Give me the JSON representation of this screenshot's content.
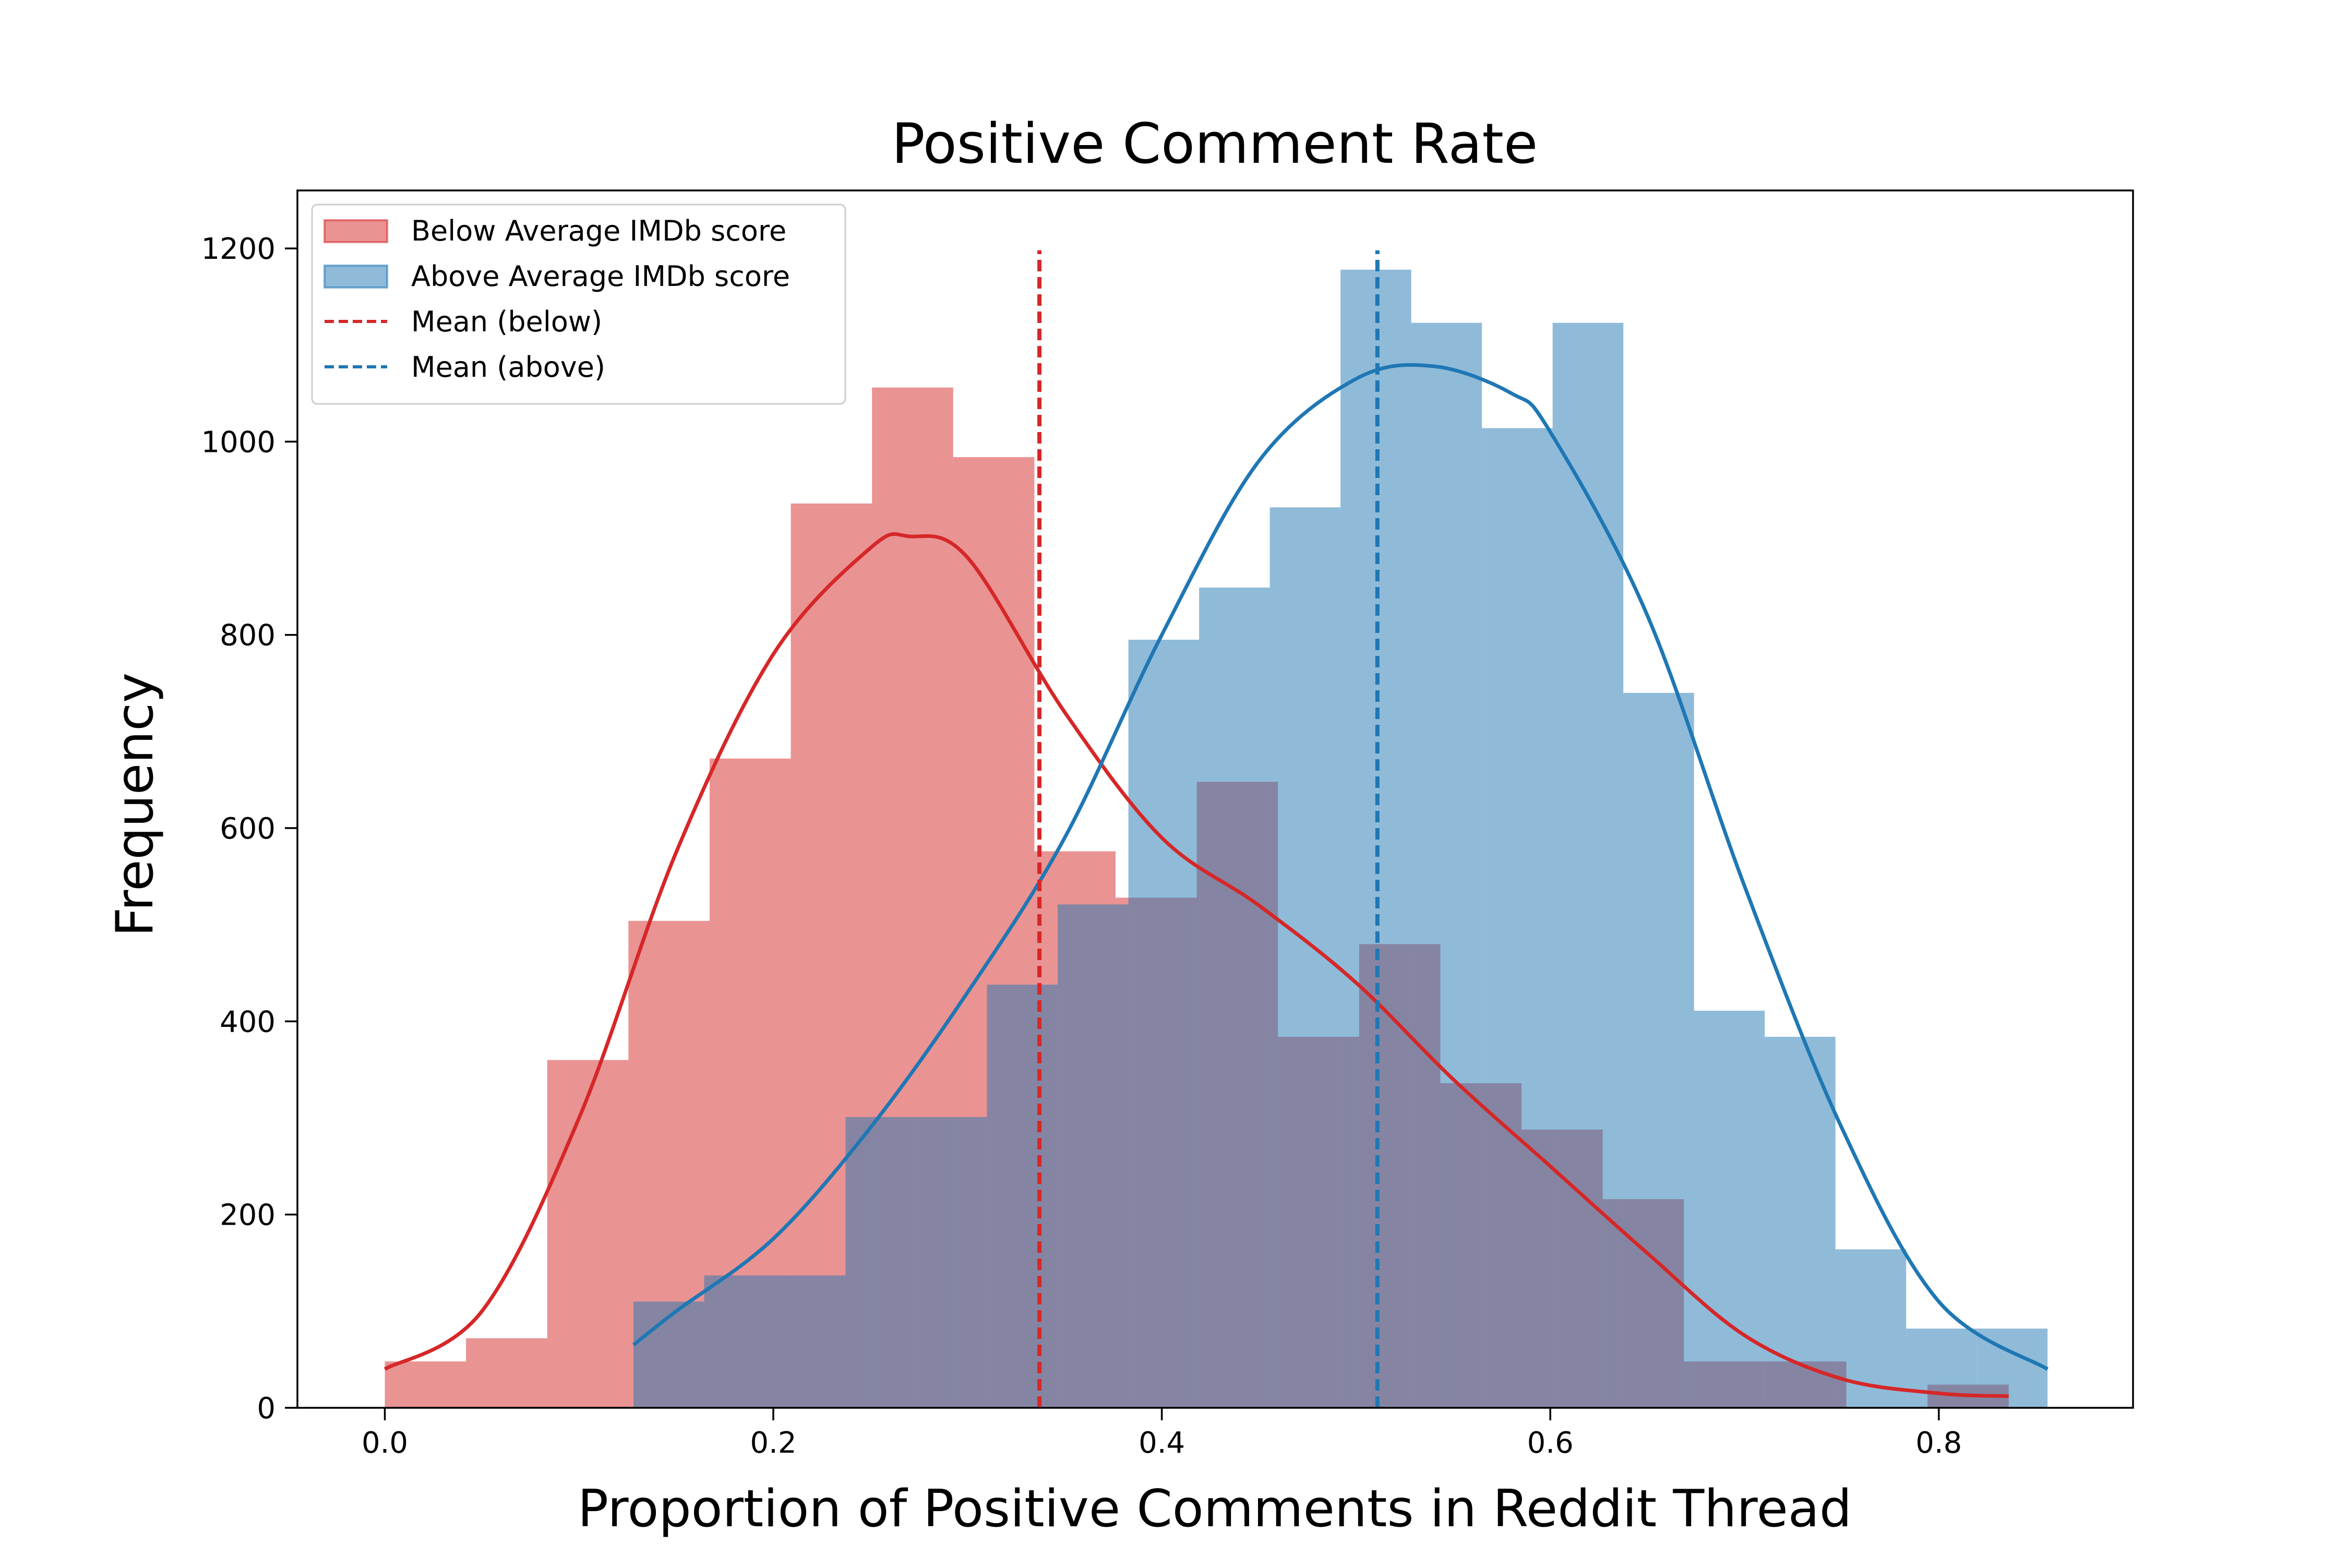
{
  "chart_data": {
    "type": "histogram",
    "title": "Positive Comment Rate",
    "xlabel": "Proportion of Positive Comments in Reddit Thread",
    "ylabel": "Frequency",
    "xlim": [
      -0.045,
      0.9
    ],
    "ylim": [
      0,
      1260
    ],
    "xticks": [
      0.0,
      0.2,
      0.4,
      0.6,
      0.8
    ],
    "xtick_labels": [
      "0.0",
      "0.2",
      "0.4",
      "0.6",
      "0.8"
    ],
    "yticks": [
      0,
      200,
      400,
      600,
      800,
      1000,
      1200
    ],
    "ytick_labels": [
      "0",
      "200",
      "400",
      "600",
      "800",
      "1000",
      "1200"
    ],
    "grid": false,
    "legend_position": "top-left",
    "series": [
      {
        "name": "Below Average IMDb score",
        "kind": "histogram",
        "color": "#d62728",
        "alpha": 0.5,
        "bin_edges": [
          0.0,
          0.0418,
          0.0836,
          0.1254,
          0.1672,
          0.209,
          0.2508,
          0.2926,
          0.3344,
          0.3762,
          0.418,
          0.4598,
          0.5016,
          0.5434,
          0.5852,
          0.627,
          0.6688,
          0.7106,
          0.7524,
          0.7942,
          0.836
        ],
        "counts": [
          48,
          72,
          360,
          504,
          672,
          936,
          1056,
          984,
          576,
          528,
          648,
          384,
          480,
          336,
          288,
          216,
          48,
          48,
          0,
          24
        ]
      },
      {
        "name": "Above Average IMDb score",
        "kind": "histogram",
        "color": "#1f77b4",
        "alpha": 0.5,
        "bin_edges": [
          0.128,
          0.1644,
          0.2008,
          0.2372,
          0.2736,
          0.31,
          0.3464,
          0.3828,
          0.4192,
          0.4556,
          0.492,
          0.5284,
          0.5648,
          0.6012,
          0.6376,
          0.674,
          0.7104,
          0.7468,
          0.7832,
          0.8196,
          0.856
        ],
        "counts": [
          110,
          137,
          137,
          301,
          301,
          438,
          521,
          795,
          849,
          932,
          1178,
          1123,
          1014,
          1123,
          740,
          411,
          384,
          164,
          82,
          82
        ]
      },
      {
        "name": "Below Average IMDb score (KDE)",
        "kind": "line",
        "color": "#d62728",
        "x": [
          0.0,
          0.05,
          0.1,
          0.15,
          0.2,
          0.25,
          0.27,
          0.3,
          0.35,
          0.4,
          0.45,
          0.5,
          0.55,
          0.6,
          0.65,
          0.7,
          0.75,
          0.8,
          0.836
        ],
        "y": [
          40,
          100,
          300,
          575,
          780,
          890,
          902,
          880,
          720,
          590,
          520,
          440,
          340,
          250,
          160,
          75,
          30,
          15,
          12
        ]
      },
      {
        "name": "Above Average IMDb score (KDE)",
        "kind": "line",
        "color": "#1f77b4",
        "x": [
          0.128,
          0.15,
          0.2,
          0.25,
          0.3,
          0.35,
          0.4,
          0.45,
          0.5,
          0.54,
          0.58,
          0.6,
          0.65,
          0.7,
          0.75,
          0.8,
          0.856
        ],
        "y": [
          65,
          100,
          175,
          290,
          430,
          590,
          800,
          980,
          1065,
          1078,
          1050,
          1010,
          820,
          540,
          290,
          110,
          40
        ]
      },
      {
        "name": "Mean (below)",
        "kind": "vline",
        "color": "#d62728",
        "dashed": true,
        "x": 0.337,
        "y_range": [
          0,
          1198
        ]
      },
      {
        "name": "Mean (above)",
        "kind": "vline",
        "color": "#1f77b4",
        "dashed": true,
        "x": 0.511,
        "y_range": [
          0,
          1198
        ]
      }
    ]
  }
}
